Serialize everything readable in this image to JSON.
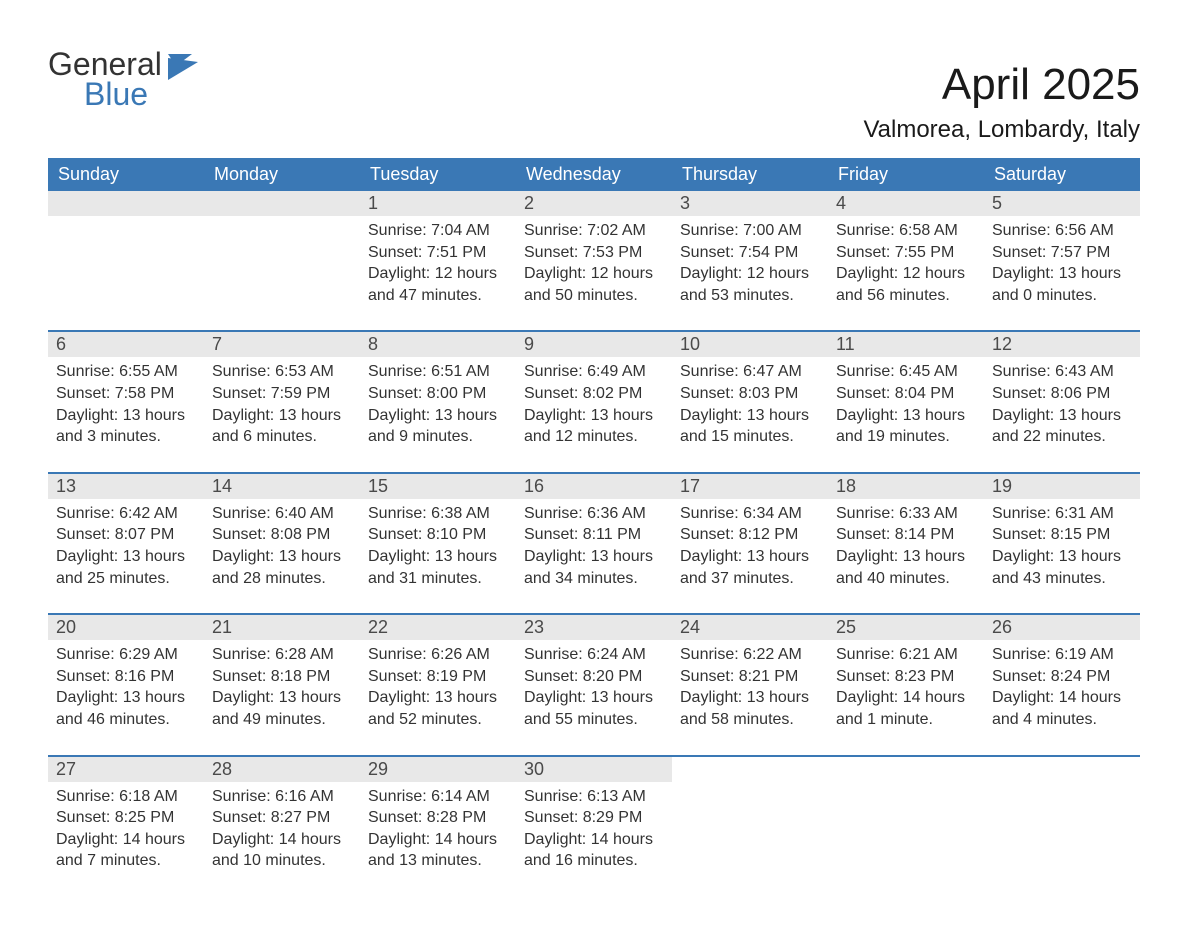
{
  "logo": {
    "word1": "General",
    "word2": "Blue",
    "flag_color": "#3a78b5",
    "text_color": "#333333"
  },
  "title": "April 2025",
  "location": "Valmorea, Lombardy, Italy",
  "colors": {
    "header_bg": "#3a78b5",
    "header_text": "#ffffff",
    "daynum_bg": "#e8e8e8",
    "body_text": "#333333",
    "row_border": "#3a78b5",
    "page_bg": "#ffffff"
  },
  "fonts": {
    "title_pt": 44,
    "subtitle_pt": 24,
    "header_pt": 18,
    "daynum_pt": 18,
    "body_pt": 16,
    "logo_pt": 32
  },
  "weekday_headers": [
    "Sunday",
    "Monday",
    "Tuesday",
    "Wednesday",
    "Thursday",
    "Friday",
    "Saturday"
  ],
  "labels": {
    "sunrise": "Sunrise:",
    "sunset": "Sunset:",
    "daylight": "Daylight:"
  },
  "weeks": [
    [
      null,
      null,
      {
        "d": "1",
        "sunrise": "7:04 AM",
        "sunset": "7:51 PM",
        "daylight": "12 hours and 47 minutes."
      },
      {
        "d": "2",
        "sunrise": "7:02 AM",
        "sunset": "7:53 PM",
        "daylight": "12 hours and 50 minutes."
      },
      {
        "d": "3",
        "sunrise": "7:00 AM",
        "sunset": "7:54 PM",
        "daylight": "12 hours and 53 minutes."
      },
      {
        "d": "4",
        "sunrise": "6:58 AM",
        "sunset": "7:55 PM",
        "daylight": "12 hours and 56 minutes."
      },
      {
        "d": "5",
        "sunrise": "6:56 AM",
        "sunset": "7:57 PM",
        "daylight": "13 hours and 0 minutes."
      }
    ],
    [
      {
        "d": "6",
        "sunrise": "6:55 AM",
        "sunset": "7:58 PM",
        "daylight": "13 hours and 3 minutes."
      },
      {
        "d": "7",
        "sunrise": "6:53 AM",
        "sunset": "7:59 PM",
        "daylight": "13 hours and 6 minutes."
      },
      {
        "d": "8",
        "sunrise": "6:51 AM",
        "sunset": "8:00 PM",
        "daylight": "13 hours and 9 minutes."
      },
      {
        "d": "9",
        "sunrise": "6:49 AM",
        "sunset": "8:02 PM",
        "daylight": "13 hours and 12 minutes."
      },
      {
        "d": "10",
        "sunrise": "6:47 AM",
        "sunset": "8:03 PM",
        "daylight": "13 hours and 15 minutes."
      },
      {
        "d": "11",
        "sunrise": "6:45 AM",
        "sunset": "8:04 PM",
        "daylight": "13 hours and 19 minutes."
      },
      {
        "d": "12",
        "sunrise": "6:43 AM",
        "sunset": "8:06 PM",
        "daylight": "13 hours and 22 minutes."
      }
    ],
    [
      {
        "d": "13",
        "sunrise": "6:42 AM",
        "sunset": "8:07 PM",
        "daylight": "13 hours and 25 minutes."
      },
      {
        "d": "14",
        "sunrise": "6:40 AM",
        "sunset": "8:08 PM",
        "daylight": "13 hours and 28 minutes."
      },
      {
        "d": "15",
        "sunrise": "6:38 AM",
        "sunset": "8:10 PM",
        "daylight": "13 hours and 31 minutes."
      },
      {
        "d": "16",
        "sunrise": "6:36 AM",
        "sunset": "8:11 PM",
        "daylight": "13 hours and 34 minutes."
      },
      {
        "d": "17",
        "sunrise": "6:34 AM",
        "sunset": "8:12 PM",
        "daylight": "13 hours and 37 minutes."
      },
      {
        "d": "18",
        "sunrise": "6:33 AM",
        "sunset": "8:14 PM",
        "daylight": "13 hours and 40 minutes."
      },
      {
        "d": "19",
        "sunrise": "6:31 AM",
        "sunset": "8:15 PM",
        "daylight": "13 hours and 43 minutes."
      }
    ],
    [
      {
        "d": "20",
        "sunrise": "6:29 AM",
        "sunset": "8:16 PM",
        "daylight": "13 hours and 46 minutes."
      },
      {
        "d": "21",
        "sunrise": "6:28 AM",
        "sunset": "8:18 PM",
        "daylight": "13 hours and 49 minutes."
      },
      {
        "d": "22",
        "sunrise": "6:26 AM",
        "sunset": "8:19 PM",
        "daylight": "13 hours and 52 minutes."
      },
      {
        "d": "23",
        "sunrise": "6:24 AM",
        "sunset": "8:20 PM",
        "daylight": "13 hours and 55 minutes."
      },
      {
        "d": "24",
        "sunrise": "6:22 AM",
        "sunset": "8:21 PM",
        "daylight": "13 hours and 58 minutes."
      },
      {
        "d": "25",
        "sunrise": "6:21 AM",
        "sunset": "8:23 PM",
        "daylight": "14 hours and 1 minute."
      },
      {
        "d": "26",
        "sunrise": "6:19 AM",
        "sunset": "8:24 PM",
        "daylight": "14 hours and 4 minutes."
      }
    ],
    [
      {
        "d": "27",
        "sunrise": "6:18 AM",
        "sunset": "8:25 PM",
        "daylight": "14 hours and 7 minutes."
      },
      {
        "d": "28",
        "sunrise": "6:16 AM",
        "sunset": "8:27 PM",
        "daylight": "14 hours and 10 minutes."
      },
      {
        "d": "29",
        "sunrise": "6:14 AM",
        "sunset": "8:28 PM",
        "daylight": "14 hours and 13 minutes."
      },
      {
        "d": "30",
        "sunrise": "6:13 AM",
        "sunset": "8:29 PM",
        "daylight": "14 hours and 16 minutes."
      },
      null,
      null,
      null
    ]
  ]
}
